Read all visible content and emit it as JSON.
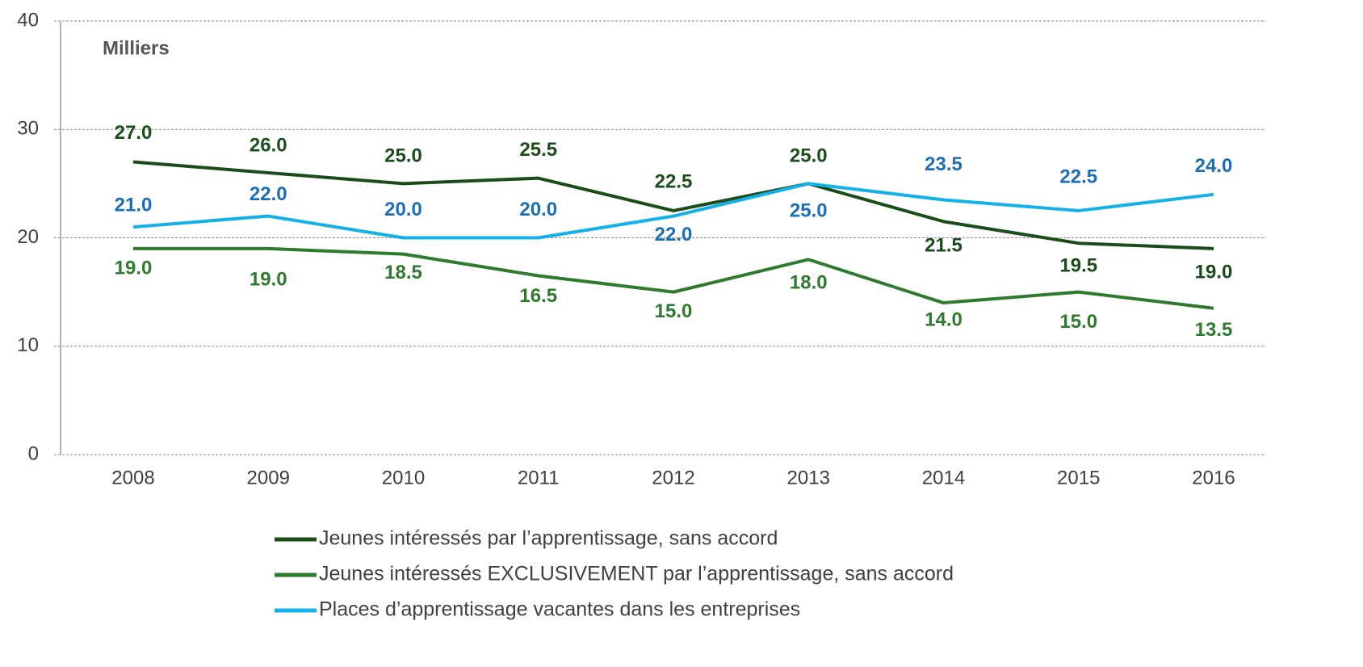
{
  "chart_data": {
    "type": "line",
    "annotation": "Milliers",
    "categories": [
      "2008",
      "2009",
      "2010",
      "2011",
      "2012",
      "2013",
      "2014",
      "2015",
      "2016"
    ],
    "series": [
      {
        "name": "Jeunes intéressés par l’apprentissage, sans accord",
        "color": "#1b4d1b",
        "label_color": "#1b4d1b",
        "values": [
          27,
          26,
          25,
          25.5,
          22.5,
          25,
          21.5,
          19.5,
          19
        ],
        "value_labels": [
          "27.0",
          "26.0",
          "25.0",
          "25.5",
          "22.5",
          "25.0",
          "21.5",
          "19.5",
          "19.0"
        ]
      },
      {
        "name": "Jeunes intéressés EXCLUSIVEMENT par l’apprentissage, sans accord",
        "color": "#2e7a2e",
        "label_color": "#2e7a2e",
        "values": [
          19,
          19,
          18.5,
          16.5,
          15,
          18,
          14,
          15,
          13.5
        ],
        "value_labels": [
          "19.0",
          "19.0",
          "18.5",
          "16.5",
          "15.0",
          "18.0",
          "14.0",
          "15.0",
          "13.5"
        ]
      },
      {
        "name": "Places d’apprentissage vacantes dans les entreprises",
        "color": "#14b0e8",
        "label_color": "#1a6fb8",
        "values": [
          21,
          22,
          20,
          20,
          22,
          25,
          23.5,
          22.5,
          24
        ],
        "value_labels": [
          "21.0",
          "22.0",
          "20.0",
          "20.0",
          "22.0",
          "25.0",
          "23.5",
          "22.5",
          "24.0"
        ]
      }
    ],
    "ylim": [
      0,
      40
    ],
    "yticks": [
      0,
      10,
      20,
      30,
      40
    ],
    "grid": true
  }
}
